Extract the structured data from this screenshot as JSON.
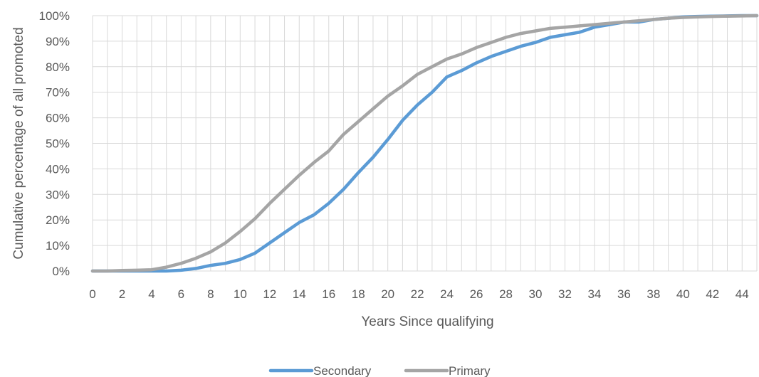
{
  "chart_data": {
    "type": "line",
    "title": "",
    "xlabel": "Years Since qualifying",
    "ylabel": "Cumulative percentage of all promoted",
    "xlim": [
      0,
      45
    ],
    "ylim": [
      0,
      100
    ],
    "x_tick_values": [
      0,
      2,
      4,
      6,
      8,
      10,
      12,
      14,
      16,
      18,
      20,
      22,
      24,
      26,
      28,
      30,
      32,
      34,
      36,
      38,
      40,
      42,
      44
    ],
    "x_tick_labels": [
      "0",
      "2",
      "4",
      "6",
      "8",
      "10",
      "12",
      "14",
      "16",
      "18",
      "20",
      "22",
      "24",
      "26",
      "28",
      "30",
      "32",
      "34",
      "36",
      "38",
      "40",
      "42",
      "44"
    ],
    "y_tick_values": [
      0,
      10,
      20,
      30,
      40,
      50,
      60,
      70,
      80,
      90,
      100
    ],
    "y_tick_labels": [
      "0%",
      "10%",
      "20%",
      "30%",
      "40%",
      "50%",
      "60%",
      "70%",
      "80%",
      "90%",
      "100%"
    ],
    "grid": true,
    "legend_position": "bottom",
    "x": [
      0,
      1,
      2,
      3,
      4,
      5,
      6,
      7,
      8,
      9,
      10,
      11,
      12,
      13,
      14,
      15,
      16,
      17,
      18,
      19,
      20,
      21,
      22,
      23,
      24,
      25,
      26,
      27,
      28,
      29,
      30,
      31,
      32,
      33,
      34,
      35,
      36,
      37,
      38,
      39,
      40,
      41,
      42,
      43,
      44,
      45
    ],
    "series": [
      {
        "name": "Secondary",
        "color": "#5b9bd5",
        "values": [
          0,
          0,
          0,
          0,
          0,
          0,
          0.3,
          1,
          2.2,
          3,
          4.5,
          7,
          11,
          15,
          19,
          22,
          26.5,
          32,
          38.5,
          44.5,
          51.5,
          59,
          65,
          70,
          76,
          78.5,
          81.5,
          84,
          86,
          88,
          89.5,
          91.5,
          92.5,
          93.5,
          95.5,
          96.5,
          97.5,
          97.5,
          98.5,
          99,
          99.5,
          99.7,
          99.8,
          99.9,
          100,
          100
        ]
      },
      {
        "name": "Primary",
        "color": "#a5a5a5",
        "values": [
          0,
          0,
          0.2,
          0.3,
          0.5,
          1.5,
          3,
          5,
          7.5,
          11,
          15.5,
          20.5,
          26.5,
          32,
          37.5,
          42.5,
          47,
          53.5,
          58.5,
          63.5,
          68.5,
          72.5,
          77,
          80,
          83,
          85,
          87.5,
          89.5,
          91.5,
          93,
          94,
          95,
          95.5,
          96,
          96.5,
          97,
          97.5,
          98,
          98.5,
          99,
          99.3,
          99.5,
          99.7,
          99.8,
          99.9,
          100
        ]
      }
    ]
  }
}
